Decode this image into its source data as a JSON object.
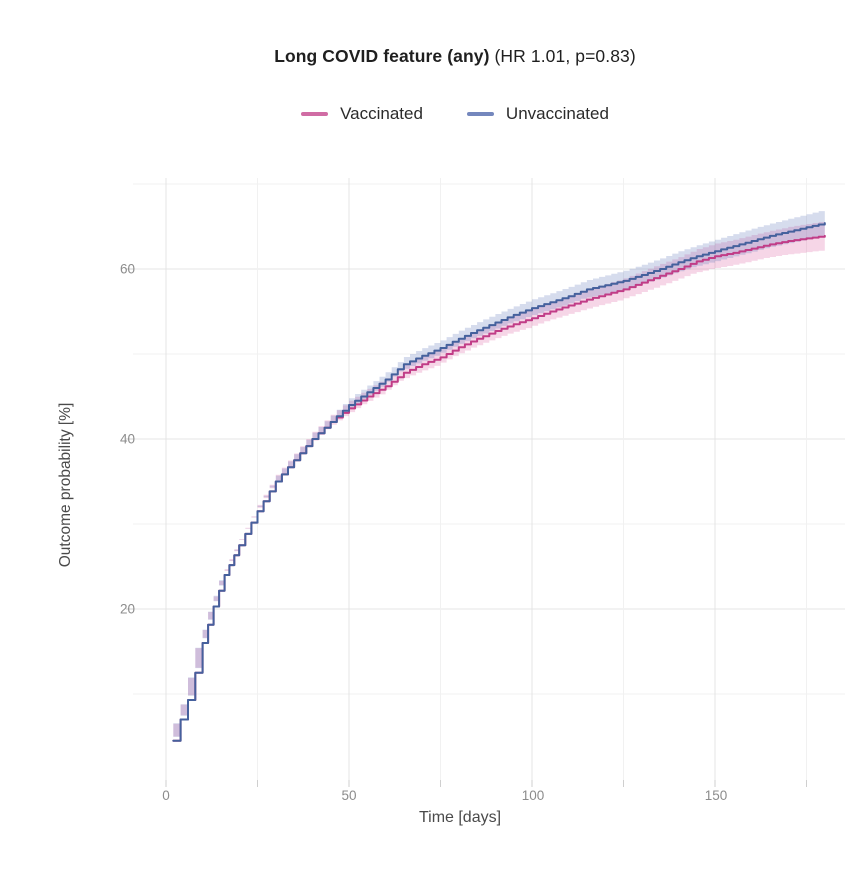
{
  "title": {
    "main": "Long COVID feature (any)",
    "stats": " (HR 1.01, p=0.83)"
  },
  "legend": {
    "items": [
      {
        "label": "Vaccinated",
        "color": "#D06CA4"
      },
      {
        "label": "Unvaccinated",
        "color": "#7487BD"
      }
    ]
  },
  "axes": {
    "x": {
      "label": "Time [days]",
      "ticks": [
        "0",
        "50",
        "100",
        "150"
      ]
    },
    "y": {
      "label": "Outcome probability [%]",
      "ticks": [
        "20",
        "40",
        "60"
      ]
    }
  },
  "colors": {
    "vaccinated_line": "#C13C87",
    "unvaccinated_line": "#45619D",
    "vaccinated_band": "rgba(219,82,156,0.24)",
    "unvaccinated_band": "rgba(96,120,186,0.26)",
    "grid_major": "#e4e4e4",
    "grid_minor": "#f1f1f1",
    "tick_mark": "#cfcfcf"
  },
  "chart_data": {
    "type": "line",
    "subtype": "kaplan-meier-cumulative-incidence",
    "title": "Long COVID feature (any) (HR 1.01, p=0.83)",
    "annotation": {
      "HR": 1.01,
      "p": 0.83
    },
    "xlabel": "Time [days]",
    "ylabel": "Outcome probability [%]",
    "xlim": [
      0,
      185
    ],
    "ylim": [
      0,
      70
    ],
    "x_ticks_major": [
      0,
      50,
      100,
      150
    ],
    "x_ticks_minor": [
      25,
      75,
      125,
      175
    ],
    "y_ticks_major": [
      20,
      40,
      60
    ],
    "y_ticks_minor": [
      10,
      30,
      50,
      70
    ],
    "grid": true,
    "legend_position": "top",
    "step": true,
    "x": [
      2,
      4,
      6,
      8,
      10,
      13,
      16,
      20,
      25,
      30,
      35,
      40,
      45,
      50,
      55,
      60,
      65,
      70,
      75,
      80,
      85,
      90,
      95,
      100,
      105,
      110,
      115,
      120,
      125,
      130,
      135,
      140,
      145,
      150,
      155,
      160,
      165,
      170,
      175,
      180
    ],
    "series": [
      {
        "name": "Vaccinated",
        "color": "#C13C87",
        "band_color": "rgba(219,82,156,0.24)",
        "values": [
          4.5,
          7,
          9.3,
          12.5,
          16,
          20.3,
          24,
          27.5,
          31.5,
          35,
          37.5,
          40,
          42,
          43.6,
          45,
          46.2,
          47.8,
          48.8,
          49.6,
          50.8,
          51.8,
          52.7,
          53.5,
          54.2,
          55,
          55.7,
          56.4,
          57,
          57.6,
          58.4,
          59.2,
          60,
          60.9,
          61.5,
          61.9,
          62.4,
          62.9,
          63.3,
          63.6,
          63.9
        ],
        "ci_halfwidth": [
          0.5,
          0.5,
          0.55,
          0.6,
          0.6,
          0.65,
          0.7,
          0.7,
          0.75,
          0.8,
          0.8,
          0.85,
          0.85,
          0.9,
          0.9,
          0.95,
          0.95,
          1.0,
          1.0,
          1.05,
          1.05,
          1.1,
          1.1,
          1.15,
          1.15,
          1.2,
          1.25,
          1.25,
          1.3,
          1.35,
          1.4,
          1.4,
          1.45,
          1.5,
          1.55,
          1.6,
          1.6,
          1.65,
          1.7,
          1.75
        ]
      },
      {
        "name": "Unvaccinated",
        "color": "#45619D",
        "band_color": "rgba(96,120,186,0.26)",
        "values": [
          4.5,
          7,
          9.3,
          12.5,
          16,
          20.3,
          24,
          27.5,
          31.5,
          35,
          37.5,
          40,
          42,
          44,
          45.5,
          47,
          48.8,
          49.8,
          50.7,
          51.8,
          52.8,
          53.7,
          54.6,
          55.4,
          56.1,
          56.8,
          57.6,
          58.1,
          58.6,
          59.3,
          60,
          60.8,
          61.5,
          62.1,
          62.7,
          63.3,
          63.9,
          64.4,
          64.9,
          65.4
        ],
        "ci_halfwidth": [
          0.45,
          0.45,
          0.5,
          0.55,
          0.55,
          0.6,
          0.6,
          0.65,
          0.65,
          0.7,
          0.7,
          0.75,
          0.75,
          0.8,
          0.8,
          0.85,
          0.85,
          0.9,
          0.9,
          0.95,
          0.95,
          1.0,
          1.0,
          1.05,
          1.05,
          1.1,
          1.1,
          1.15,
          1.2,
          1.2,
          1.25,
          1.3,
          1.3,
          1.35,
          1.4,
          1.45,
          1.45,
          1.5,
          1.55,
          1.6
        ]
      }
    ]
  }
}
